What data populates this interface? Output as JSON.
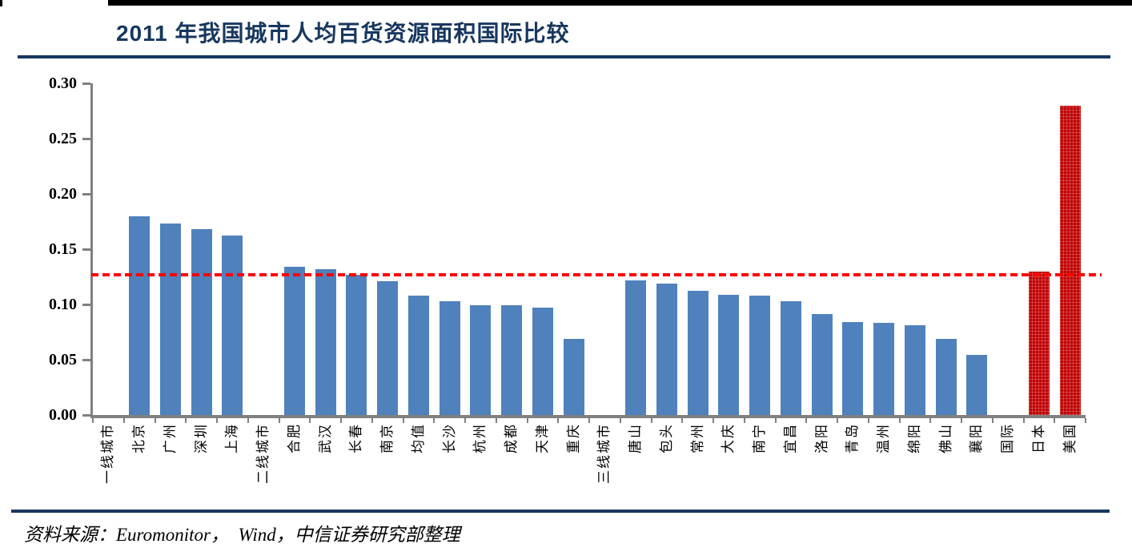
{
  "header": {
    "title": "2011 年我国城市人均百货资源面积国际比较"
  },
  "footer": {
    "source": "资料来源：Euromonitor，  Wind，中信证券研究部整理"
  },
  "chart_data": {
    "type": "bar",
    "title": "2011 年我国城市人均百货资源面积国际比较",
    "xlabel": "",
    "ylabel": "",
    "ylim": [
      0,
      0.3
    ],
    "ytick_labels": [
      "0.00",
      "0.05",
      "0.10",
      "0.15",
      "0.20",
      "0.25",
      "0.30"
    ],
    "ytick_values": [
      0,
      0.05,
      0.1,
      0.15,
      0.2,
      0.25,
      0.3
    ],
    "grid": false,
    "legend": "none",
    "categories": [
      "一线城市",
      "北京",
      "广州",
      "深圳",
      "上海",
      "二线城市",
      "合肥",
      "武汉",
      "长春",
      "南京",
      "均值",
      "长沙",
      "杭州",
      "成都",
      "天津",
      "重庆",
      "三线城市",
      "唐山",
      "包头",
      "常州",
      "大庆",
      "南宁",
      "宜昌",
      "洛阳",
      "青岛",
      "温州",
      "绵阳",
      "佛山",
      "襄阳",
      "国际",
      "日本",
      "美国"
    ],
    "values": [
      null,
      0.18,
      0.173,
      0.168,
      0.162,
      null,
      0.134,
      0.132,
      0.127,
      0.121,
      0.108,
      0.103,
      0.099,
      0.099,
      0.097,
      0.069,
      null,
      0.122,
      0.119,
      0.112,
      0.109,
      0.108,
      0.103,
      0.091,
      0.084,
      0.083,
      0.081,
      0.069,
      0.054,
      null,
      0.13,
      0.28
    ],
    "bar_color_default": "#4F81BD",
    "bar_color_highlight": "#C00000",
    "highlight_categories": [
      "日本",
      "美国"
    ],
    "reference_line": {
      "value": 0.127,
      "color": "#FF0000",
      "style": "dashed"
    },
    "axis_color": "#808080",
    "title_color": "#17375E"
  }
}
